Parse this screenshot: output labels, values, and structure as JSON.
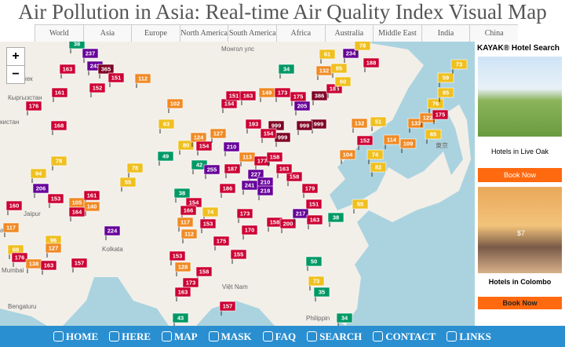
{
  "title": "Air Pollution in Asia: Real-time Air Quality Index Visual Map",
  "tabs": [
    "World",
    "Asia",
    "Europe",
    "North America",
    "South America",
    "Africa",
    "Australia",
    "Middle East",
    "India",
    "China"
  ],
  "zoom": [
    "+",
    "−"
  ],
  "places": [
    "Монгол улс",
    "Бишкек",
    "Кыргызстан",
    "кистан",
    "Jaipur",
    "Lucknow",
    "Kolkata",
    "Mumbai",
    "Bengaluru",
    "Việt Nam",
    "Philippin",
    "東京",
    "abad"
  ],
  "aqi_markers": [
    38,
    237,
    243,
    365,
    151,
    163,
    152,
    112,
    161,
    176,
    168,
    102,
    63,
    80,
    78,
    94,
    206,
    153,
    105,
    161,
    140,
    164,
    160,
    117,
    96,
    127,
    68,
    176,
    138,
    163,
    157,
    224,
    55,
    78,
    49,
    124,
    154,
    127,
    42,
    255,
    210,
    113,
    164,
    151,
    163,
    149,
    173,
    175,
    205,
    386,
    185,
    999,
    999,
    999,
    999,
    193,
    154,
    177,
    158,
    227,
    210,
    218,
    241,
    187,
    186,
    173,
    170,
    158,
    200,
    217,
    163,
    151,
    179,
    158,
    163,
    38,
    154,
    166,
    74,
    117,
    153,
    112,
    175,
    155,
    153,
    128,
    158,
    173,
    163,
    43,
    157,
    50,
    73,
    35,
    34,
    55,
    38,
    104,
    132,
    152,
    51,
    74,
    82,
    114,
    109,
    85,
    133,
    122,
    175,
    76,
    85,
    59,
    73,
    234,
    78,
    188,
    132,
    85,
    61,
    34,
    60
  ],
  "ad": {
    "header": "KAYAK® Hotel Search",
    "items": [
      {
        "caption": "Hotels in Live Oak",
        "button": "Book Now"
      },
      {
        "price": "$7",
        "caption": "Hotels in Colombo",
        "button": "Book Now"
      }
    ]
  },
  "nav": [
    "HOME",
    "HERE",
    "MAP",
    "MASK",
    "FAQ",
    "SEARCH",
    "CONTACT",
    "LINKS"
  ]
}
